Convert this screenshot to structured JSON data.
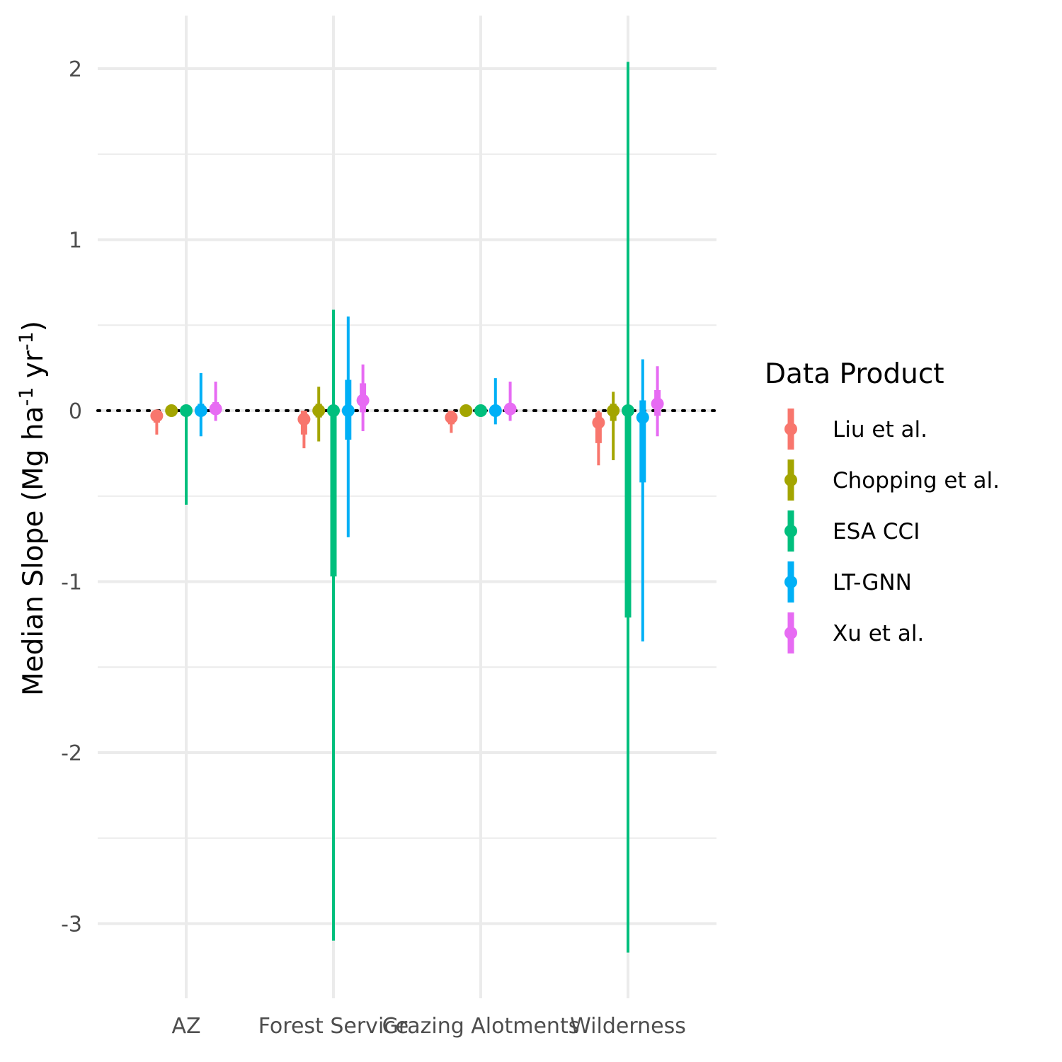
{
  "chart_data": {
    "type": "pointrange",
    "title": "",
    "xlabel": "",
    "ylabel": "Median Slope (Mg ha-1 yr-1)",
    "ylabel_parts": [
      "Median Slope (Mg ha",
      "-1",
      " yr",
      "-1",
      ")"
    ],
    "ylim": [
      -3.4,
      2.3
    ],
    "yticks": [
      2,
      1,
      0,
      -1,
      -2,
      -3
    ],
    "ytick_labels": [
      "2",
      "1",
      "0",
      "-1",
      "-2",
      "-3"
    ],
    "categories": [
      "AZ",
      "Forest Service",
      "Grazing Alotments",
      "Wilderness"
    ],
    "reference_line": {
      "y": 0,
      "style": "dotted"
    },
    "grid": true,
    "legend": {
      "title": "Data Product",
      "position": "right"
    },
    "series": [
      {
        "name": "Liu et al.",
        "color": "#F8766D",
        "points": [
          {
            "category": "AZ",
            "median": -0.03,
            "inner": [
              -0.07,
              0.0
            ],
            "outer": [
              -0.14,
              0.0
            ]
          },
          {
            "category": "Forest Service",
            "median": -0.05,
            "inner": [
              -0.14,
              0.0
            ],
            "outer": [
              -0.22,
              0.0
            ]
          },
          {
            "category": "Grazing Alotments",
            "median": -0.04,
            "inner": [
              -0.08,
              0.0
            ],
            "outer": [
              -0.13,
              0.0
            ]
          },
          {
            "category": "Wilderness",
            "median": -0.07,
            "inner": [
              -0.19,
              -0.01
            ],
            "outer": [
              -0.32,
              0.0
            ]
          }
        ]
      },
      {
        "name": "Chopping et al.",
        "color": "#A3A500",
        "points": [
          {
            "category": "AZ",
            "median": 0.0,
            "inner": [
              -0.01,
              0.01
            ],
            "outer": [
              -0.02,
              0.02
            ]
          },
          {
            "category": "Forest Service",
            "median": 0.0,
            "inner": [
              -0.04,
              0.04
            ],
            "outer": [
              -0.18,
              0.14
            ]
          },
          {
            "category": "Grazing Alotments",
            "median": 0.0,
            "inner": [
              -0.01,
              0.01
            ],
            "outer": [
              -0.02,
              0.02
            ]
          },
          {
            "category": "Wilderness",
            "median": 0.0,
            "inner": [
              -0.06,
              0.04
            ],
            "outer": [
              -0.29,
              0.11
            ]
          }
        ]
      },
      {
        "name": "ESA CCI",
        "color": "#00BF7D",
        "points": [
          {
            "category": "AZ",
            "median": 0.0,
            "inner": [
              -0.03,
              0.0
            ],
            "outer": [
              -0.55,
              0.0
            ]
          },
          {
            "category": "Forest Service",
            "median": 0.0,
            "inner": [
              -0.97,
              0.0
            ],
            "outer": [
              -3.1,
              0.59
            ]
          },
          {
            "category": "Grazing Alotments",
            "median": 0.0,
            "inner": [
              -0.01,
              0.01
            ],
            "outer": [
              -0.02,
              0.02
            ]
          },
          {
            "category": "Wilderness",
            "median": 0.0,
            "inner": [
              -1.21,
              0.0
            ],
            "outer": [
              -3.17,
              2.04
            ]
          }
        ]
      },
      {
        "name": "LT-GNN",
        "color": "#00B0F6",
        "points": [
          {
            "category": "AZ",
            "median": 0.0,
            "inner": [
              -0.03,
              0.04
            ],
            "outer": [
              -0.15,
              0.22
            ]
          },
          {
            "category": "Forest Service",
            "median": 0.0,
            "inner": [
              -0.17,
              0.18
            ],
            "outer": [
              -0.74,
              0.55
            ]
          },
          {
            "category": "Grazing Alotments",
            "median": 0.0,
            "inner": [
              -0.03,
              0.03
            ],
            "outer": [
              -0.08,
              0.19
            ]
          },
          {
            "category": "Wilderness",
            "median": -0.04,
            "inner": [
              -0.42,
              0.06
            ],
            "outer": [
              -1.35,
              0.3
            ]
          }
        ]
      },
      {
        "name": "Xu et al.",
        "color": "#E76BF3",
        "points": [
          {
            "category": "AZ",
            "median": 0.01,
            "inner": [
              -0.02,
              0.05
            ],
            "outer": [
              -0.06,
              0.17
            ]
          },
          {
            "category": "Forest Service",
            "median": 0.06,
            "inner": [
              -0.01,
              0.16
            ],
            "outer": [
              -0.12,
              0.27
            ]
          },
          {
            "category": "Grazing Alotments",
            "median": 0.01,
            "inner": [
              -0.02,
              0.04
            ],
            "outer": [
              -0.06,
              0.17
            ]
          },
          {
            "category": "Wilderness",
            "median": 0.04,
            "inner": [
              -0.03,
              0.12
            ],
            "outer": [
              -0.15,
              0.26
            ]
          }
        ]
      }
    ]
  }
}
